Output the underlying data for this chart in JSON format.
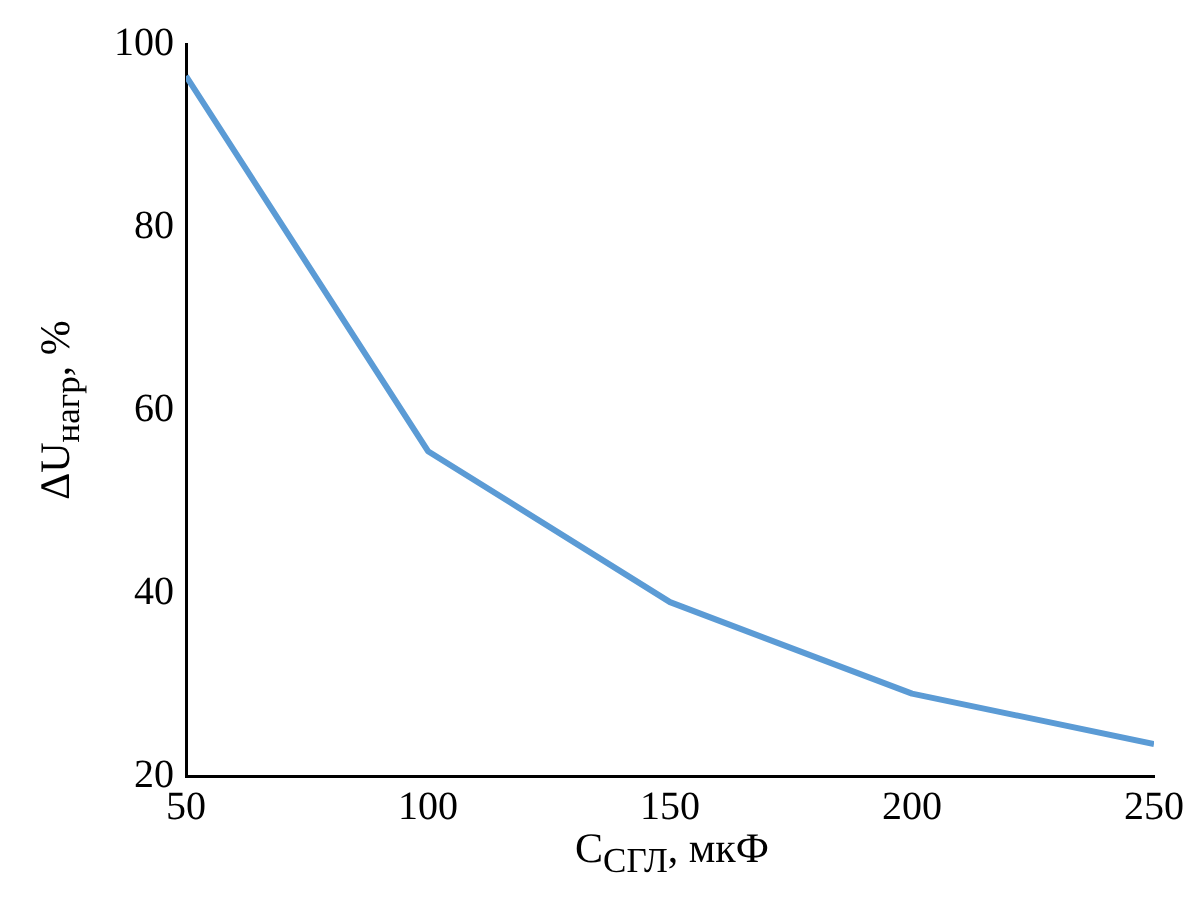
{
  "chart_data": {
    "type": "line",
    "xlabel": "C$_{СГЛ}$, мкФ",
    "ylabel": "ΔU$_{нагр}$, %",
    "x": [
      50,
      100,
      150,
      200,
      250
    ],
    "series": [
      {
        "color": "#5b9bd5",
        "values": [
          96.5,
          55.5,
          39,
          29,
          23.5
        ]
      }
    ],
    "xlim": [
      50,
      250
    ],
    "xticks": [
      50,
      100,
      150,
      200,
      250
    ],
    "ylim": [
      20,
      100
    ],
    "yticks": [
      20,
      40,
      60,
      80,
      100
    ],
    "grid": false,
    "legend": false,
    "marker": "none",
    "line_style": "solid"
  }
}
